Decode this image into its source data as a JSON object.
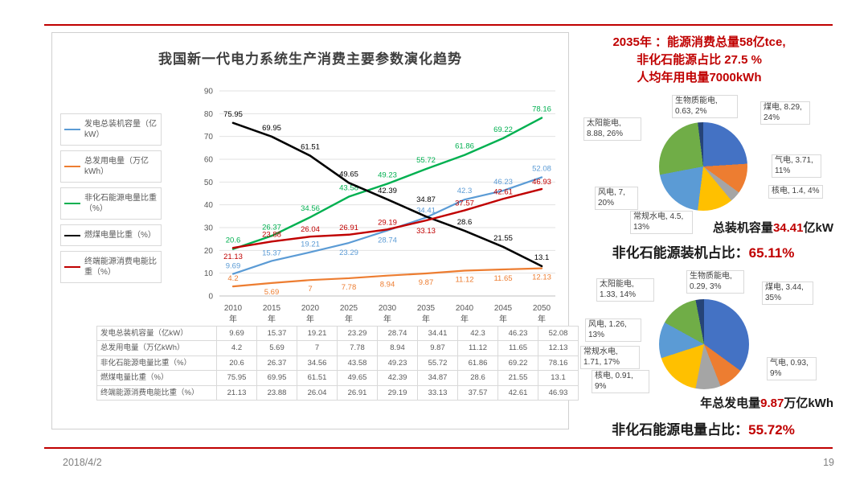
{
  "slide": {
    "footer_date": "2018/4/2",
    "page_number": "19",
    "accent_color": "#C00000"
  },
  "chart_data": [
    {
      "type": "line",
      "title": "我国新一代电力系统生产消费主要参数演化趋势",
      "categories": [
        "2010",
        "2015",
        "2020",
        "2025",
        "2030",
        "2035",
        "2040",
        "2045",
        "2050"
      ],
      "category_suffix": "年",
      "xlabel": "",
      "ylabel": "",
      "ylim": [
        0,
        90
      ],
      "ytick_step": 10,
      "grid": true,
      "legend_position": "left",
      "series": [
        {
          "name": "发电总装机容量（亿kW）",
          "color": "#5B9BD5",
          "stroke_width": 2.2,
          "values": [
            9.69,
            15.37,
            19.21,
            23.29,
            28.74,
            34.41,
            42.3,
            46.23,
            52.08
          ],
          "label_dy": [
            -7,
            -7,
            -7,
            15,
            15,
            -6,
            -8,
            -8,
            -8
          ]
        },
        {
          "name": "总发用电量（万亿kWh）",
          "color": "#ED7D31",
          "stroke_width": 2.2,
          "values": [
            4.2,
            5.69,
            7,
            7.78,
            8.94,
            9.87,
            11.12,
            11.65,
            12.13
          ],
          "label_dy": [
            -7,
            14,
            14,
            14,
            14,
            14,
            14,
            14,
            14
          ]
        },
        {
          "name": "非化石能源电量比重（%）",
          "color": "#00B050",
          "stroke_width": 2.4,
          "values": [
            20.6,
            26.37,
            34.56,
            43.58,
            49.23,
            55.72,
            61.86,
            69.22,
            78.16
          ],
          "label_dy": [
            -8,
            -8,
            -8,
            -8,
            -8,
            -8,
            -8,
            -8,
            -8
          ]
        },
        {
          "name": "燃煤电量比重（%）",
          "color": "#000000",
          "stroke_width": 2.6,
          "values": [
            75.95,
            69.95,
            61.51,
            49.65,
            42.39,
            34.87,
            28.6,
            21.55,
            13.1
          ],
          "label_dy": [
            -8,
            -8,
            -8,
            -8,
            -8,
            -18,
            -8,
            -8,
            -8
          ]
        },
        {
          "name": "终端能源消费电能比重（%）",
          "color": "#C00000",
          "stroke_width": 2.4,
          "values": [
            21.13,
            23.88,
            26.04,
            26.91,
            29.19,
            33.13,
            37.57,
            42.61,
            46.93
          ],
          "label_dy": [
            14,
            -6,
            -6,
            -6,
            -6,
            16,
            -6,
            -6,
            -6
          ]
        }
      ]
    },
    {
      "type": "pie",
      "title": "总装机容量34.41亿kW",
      "labels": [
        "煤电",
        "气电",
        "核电",
        "常规水电",
        "风电",
        "太阳能电",
        "生物质能电"
      ],
      "values": [
        8.29,
        3.71,
        1.4,
        4.5,
        7,
        8.88,
        0.63
      ],
      "percents": [
        24,
        11,
        4,
        13,
        20,
        26,
        2
      ],
      "colors": [
        "#4472C4",
        "#ED7D31",
        "#A5A5A5",
        "#FFC000",
        "#5B9BD5",
        "#70AD47",
        "#264478"
      ]
    },
    {
      "type": "pie",
      "title": "年总发电量9.87万亿kWh",
      "labels": [
        "煤电",
        "气电",
        "核电",
        "常规水电",
        "风电",
        "太阳能电",
        "生物质能电"
      ],
      "values": [
        3.44,
        0.93,
        0.91,
        1.71,
        1.26,
        1.33,
        0.29
      ],
      "percents": [
        35,
        9,
        9,
        17,
        13,
        14,
        3
      ],
      "colors": [
        "#4472C4",
        "#ED7D31",
        "#A5A5A5",
        "#FFC000",
        "#5B9BD5",
        "#70AD47",
        "#264478"
      ]
    }
  ],
  "right_panel": {
    "headline": [
      "2035年 ：能源消费总量58亿tce,",
      "非化石能源占比 27.5 %",
      "人均年用电量7000kWh"
    ],
    "pie1_labels": [
      "太阳能电, 8.88, 26%",
      "生物质能电, 0.63, 2%",
      "煤电, 8.29, 24%",
      "气电, 3.71, 11%",
      "核电, 1.4, 4%",
      "常规水电, 4.5, 13%",
      "风电, 7, 20%"
    ],
    "pie1_caption": {
      "prefix": "总装机容量",
      "value": "34.41",
      "suffix": "亿kW"
    },
    "pie1_stat": {
      "label": "非化石能源装机占比：",
      "value": "65.11%"
    },
    "pie2_labels": [
      "太阳能电, 1.33, 14%",
      "生物质能电, 0.29, 3%",
      "煤电, 3.44, 35%",
      "风电, 1.26, 13%",
      "常规水电, 1.71, 17%",
      "核电, 0.91, 9%",
      "气电, 0.93, 9%"
    ],
    "pie2_caption": {
      "prefix": "年总发电量",
      "value": "9.87",
      "suffix": "万亿kWh"
    },
    "pie2_stat": {
      "label": "非化石能源电量占比：",
      "value": "55.72%"
    }
  }
}
